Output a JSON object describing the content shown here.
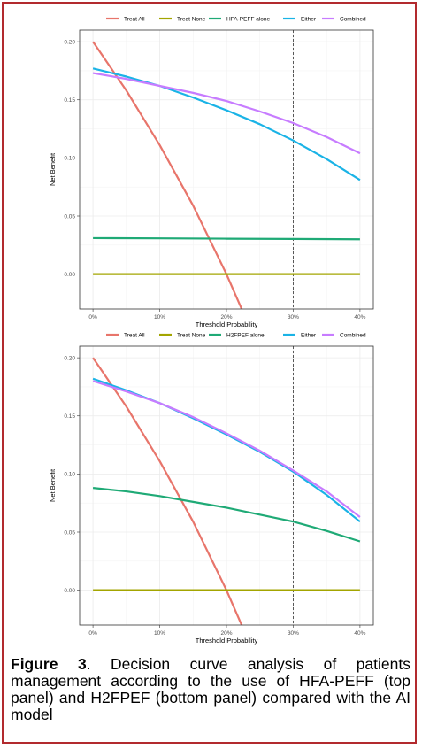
{
  "chart_data": [
    {
      "type": "line",
      "xlabel": "Threshold Probability",
      "ylabel": "Net Benefit",
      "xlim": [
        -0.02,
        0.42
      ],
      "ylim": [
        -0.03,
        0.21
      ],
      "x_ticks": [
        0,
        0.1,
        0.2,
        0.3,
        0.4
      ],
      "x_tick_labels": [
        "0%",
        "10%",
        "20%",
        "30%",
        "40%"
      ],
      "y_ticks": [
        0,
        0.05,
        0.1,
        0.15,
        0.2
      ],
      "y_tick_labels": [
        "0.00",
        "0.05",
        "0.10",
        "0.15",
        "0.20"
      ],
      "vline_x": 0.3,
      "grid": true,
      "legend_position": "top",
      "series": [
        {
          "name": "Treat All",
          "color": "#e8756b",
          "x": [
            0,
            0.05,
            0.1,
            0.15,
            0.2,
            0.225
          ],
          "y": [
            0.2,
            0.158,
            0.111,
            0.059,
            0.0,
            -0.033
          ]
        },
        {
          "name": "Treat None",
          "color": "#a3a500",
          "x": [
            0,
            0.4
          ],
          "y": [
            0,
            0
          ]
        },
        {
          "name": "HFA-PEFF alone",
          "color": "#1faa76",
          "x": [
            0,
            0.1,
            0.2,
            0.3,
            0.4
          ],
          "y": [
            0.031,
            0.0308,
            0.0305,
            0.0303,
            0.03
          ]
        },
        {
          "name": "Either",
          "color": "#1ab3e6",
          "x": [
            0,
            0.05,
            0.1,
            0.15,
            0.2,
            0.25,
            0.3,
            0.35,
            0.4
          ],
          "y": [
            0.177,
            0.17,
            0.162,
            0.152,
            0.141,
            0.129,
            0.115,
            0.099,
            0.081
          ]
        },
        {
          "name": "Combined",
          "color": "#c77cff",
          "x": [
            0,
            0.05,
            0.1,
            0.15,
            0.2,
            0.25,
            0.3,
            0.35,
            0.4
          ],
          "y": [
            0.173,
            0.168,
            0.162,
            0.156,
            0.149,
            0.14,
            0.13,
            0.118,
            0.104
          ]
        }
      ]
    },
    {
      "type": "line",
      "xlabel": "Threshold Probability",
      "ylabel": "Net Benefit",
      "xlim": [
        -0.02,
        0.42
      ],
      "ylim": [
        -0.03,
        0.21
      ],
      "x_ticks": [
        0,
        0.1,
        0.2,
        0.3,
        0.4
      ],
      "x_tick_labels": [
        "0%",
        "10%",
        "20%",
        "30%",
        "40%"
      ],
      "y_ticks": [
        0,
        0.05,
        0.1,
        0.15,
        0.2
      ],
      "y_tick_labels": [
        "0.00",
        "0.05",
        "0.10",
        "0.15",
        "0.20"
      ],
      "vline_x": 0.3,
      "grid": true,
      "legend_position": "top",
      "series": [
        {
          "name": "Treat All",
          "color": "#e8756b",
          "x": [
            0,
            0.05,
            0.1,
            0.15,
            0.2,
            0.225
          ],
          "y": [
            0.2,
            0.158,
            0.111,
            0.059,
            0.0,
            -0.033
          ]
        },
        {
          "name": "Treat None",
          "color": "#a3a500",
          "x": [
            0,
            0.4
          ],
          "y": [
            0,
            0
          ]
        },
        {
          "name": "H2FPEF alone",
          "color": "#1faa76",
          "x": [
            0,
            0.05,
            0.1,
            0.15,
            0.2,
            0.25,
            0.3,
            0.35,
            0.4
          ],
          "y": [
            0.088,
            0.085,
            0.081,
            0.076,
            0.071,
            0.065,
            0.059,
            0.051,
            0.042
          ]
        },
        {
          "name": "Either",
          "color": "#1ab3e6",
          "x": [
            0,
            0.05,
            0.1,
            0.15,
            0.2,
            0.25,
            0.3,
            0.35,
            0.4
          ],
          "y": [
            0.182,
            0.172,
            0.161,
            0.148,
            0.134,
            0.119,
            0.102,
            0.082,
            0.059
          ]
        },
        {
          "name": "Combined",
          "color": "#c77cff",
          "x": [
            0,
            0.05,
            0.1,
            0.15,
            0.2,
            0.25,
            0.3,
            0.35,
            0.4
          ],
          "y": [
            0.18,
            0.171,
            0.161,
            0.149,
            0.135,
            0.12,
            0.103,
            0.085,
            0.063
          ]
        }
      ]
    }
  ],
  "caption": {
    "label": "Figure 3",
    "text": ". Decision curve analysis of patients management according to the use of HFA-PEFF (top panel) and H2FPEF (bottom panel) compared with the AI model"
  }
}
